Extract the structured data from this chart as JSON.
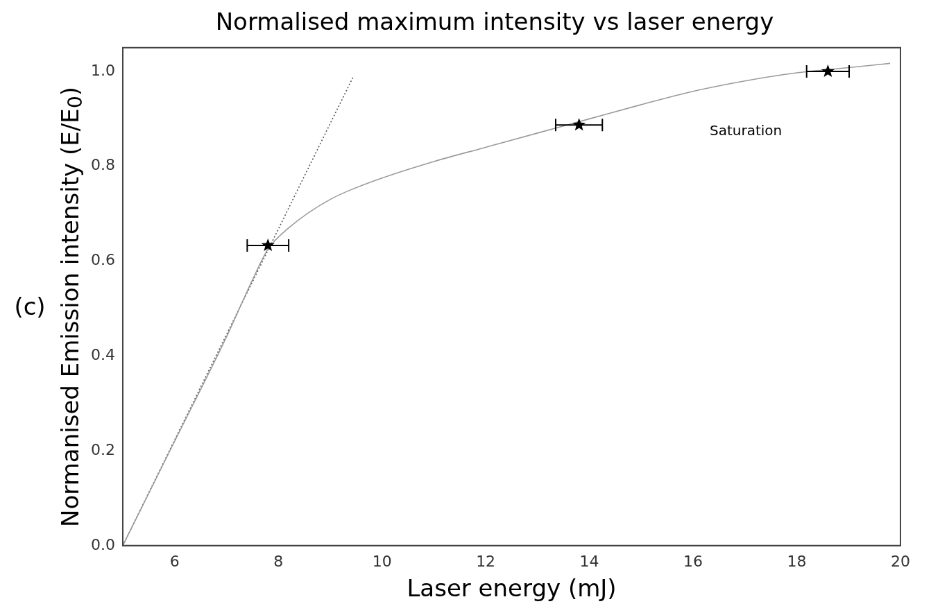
{
  "chart_data": {
    "type": "scatter",
    "title": "Normalised maximum intensity vs laser energy",
    "xlabel": "Laser energy (mJ)",
    "ylabel": "Normanised Emission intensity (E/E$_{0}$)",
    "xlim": [
      5,
      20
    ],
    "xticks": [
      6,
      8,
      10,
      12,
      14,
      16,
      18,
      20
    ],
    "ylim": [
      0,
      1.05
    ],
    "yticks": [
      {
        "value": 0,
        "label": "0.0"
      },
      {
        "value": 0.2,
        "label": "0.2"
      },
      {
        "value": 0.4,
        "label": "0.4"
      },
      {
        "value": 0.6,
        "label": "0.6"
      },
      {
        "value": 0.8,
        "label": "0.8"
      },
      {
        "value": 1,
        "label": "1.0"
      }
    ],
    "grid": false,
    "legend": false,
    "series": [
      {
        "color": "#000000",
        "marker": "star",
        "x": [
          7.8,
          13.8,
          18.6
        ],
        "values": [
          0.633,
          0.887,
          1.0
        ],
        "xerrors": [
          0.4,
          0.45,
          0.41
        ]
      },
      {
        "type": "line",
        "color": "#9a9a9a",
        "marker": "none",
        "line_style": "solid",
        "x": [
          5,
          6,
          7,
          7.5,
          7.8,
          8.2,
          9,
          10,
          11,
          12,
          13,
          14,
          15,
          16,
          17,
          18,
          19,
          19.8
        ],
        "values": [
          0,
          0.22,
          0.44,
          0.56,
          0.625,
          0.67,
          0.73,
          0.775,
          0.81,
          0.84,
          0.87,
          0.9,
          0.93,
          0.958,
          0.98,
          0.997,
          1.008,
          1.017
        ]
      },
      {
        "type": "line",
        "color": "#555555",
        "marker": "none",
        "line_style": "dotted",
        "x": [
          5,
          9.45
        ],
        "values": [
          0,
          0.99
        ]
      }
    ],
    "annotations": [
      "Saturation",
      "(c)"
    ]
  }
}
